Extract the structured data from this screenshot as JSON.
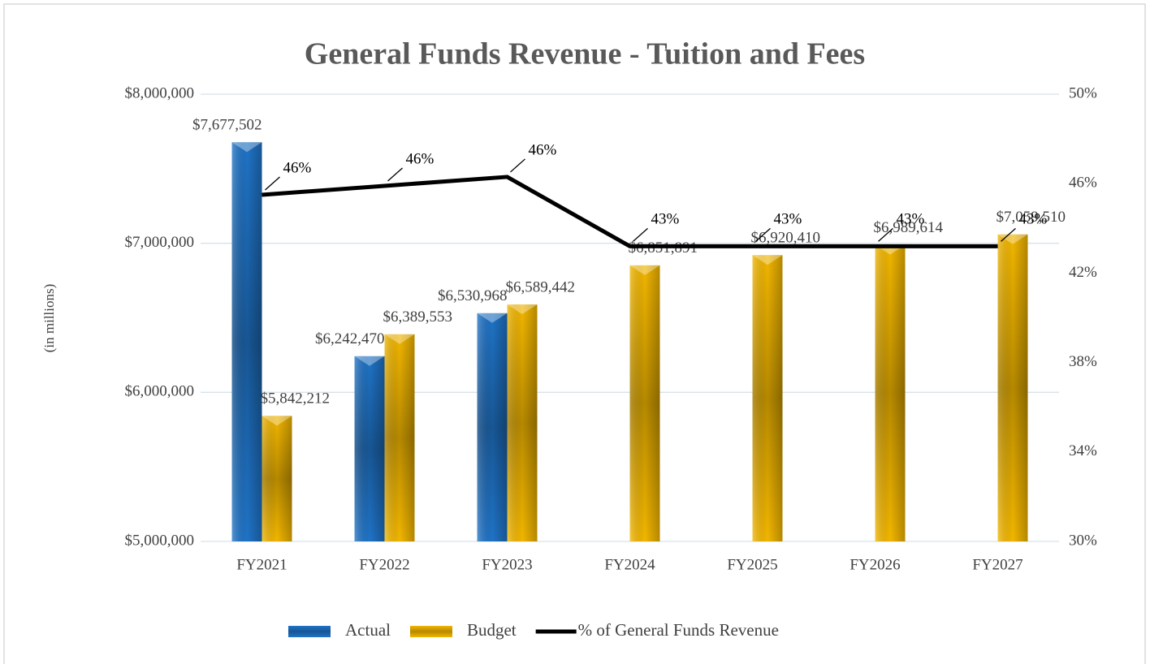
{
  "chart_data": {
    "type": "bar",
    "title": "General Funds Revenue - Tuition and Fees",
    "y_label": "(in millions)",
    "categories": [
      "FY2021",
      "FY2022",
      "FY2023",
      "FY2024",
      "FY2025",
      "FY2026",
      "FY2027"
    ],
    "series": [
      {
        "name": "Actual",
        "type": "bar",
        "color": "#1f73c6",
        "values": [
          7677502,
          6242470,
          6530968,
          null,
          null,
          null,
          null
        ],
        "value_labels": [
          "$7,677,502",
          "$6,242,470",
          "$6,530,968",
          null,
          null,
          null,
          null
        ]
      },
      {
        "name": "Budget",
        "type": "bar",
        "color": "#f2b600",
        "values": [
          5842212,
          6389553,
          6589442,
          6851891,
          6920410,
          6989614,
          7059510
        ],
        "value_labels": [
          "$5,842,212",
          "$6,389,553",
          "$6,589,442",
          "$6,851,891",
          "$6,920,410",
          "$6,989,614",
          "$7,059,510"
        ]
      },
      {
        "name": "% of General Funds Revenue",
        "type": "line",
        "axis": "y2",
        "color": "#000000",
        "values": [
          45.5,
          45.9,
          46.3,
          43.2,
          43.2,
          43.2,
          43.2
        ],
        "value_labels": [
          "46%",
          "46%",
          "46%",
          "43%",
          "43%",
          "43%",
          "43%"
        ]
      }
    ],
    "ylim": [
      5000000,
      8000000
    ],
    "yticks": [
      {
        "value": 5000000,
        "label": "$5,000,000"
      },
      {
        "value": 6000000,
        "label": "$6,000,000"
      },
      {
        "value": 7000000,
        "label": "$7,000,000"
      },
      {
        "value": 8000000,
        "label": "$8,000,000"
      }
    ],
    "y2lim": [
      30,
      50
    ],
    "y2ticks": [
      {
        "value": 30,
        "label": "30%"
      },
      {
        "value": 34,
        "label": "34%"
      },
      {
        "value": 38,
        "label": "38%"
      },
      {
        "value": 42,
        "label": "42%"
      },
      {
        "value": 46,
        "label": "46%"
      },
      {
        "value": 50,
        "label": "50%"
      }
    ],
    "grid": true,
    "legend": "bottom"
  }
}
